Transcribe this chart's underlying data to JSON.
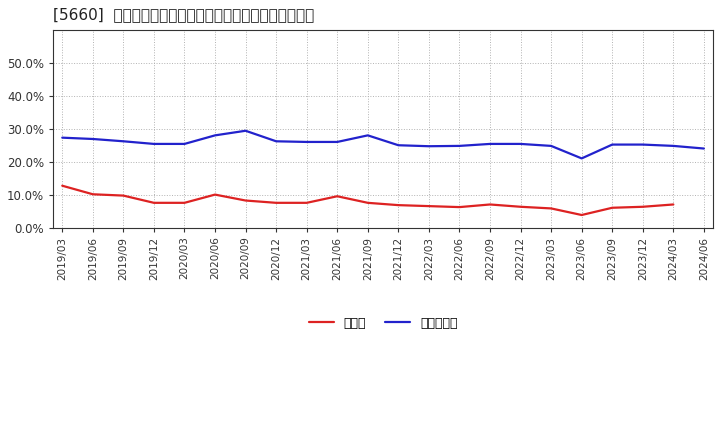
{
  "title": "[5660]  現領金、有利子負債の総資産に対する比率の推移",
  "x_labels": [
    "2019/03",
    "2019/06",
    "2019/09",
    "2019/12",
    "2020/03",
    "2020/06",
    "2020/09",
    "2020/12",
    "2021/03",
    "2021/06",
    "2021/09",
    "2021/12",
    "2022/03",
    "2022/06",
    "2022/09",
    "2022/12",
    "2023/03",
    "2023/06",
    "2023/09",
    "2023/12",
    "2024/03",
    "2024/06"
  ],
  "cash": [
    0.127,
    0.101,
    0.097,
    0.075,
    0.075,
    0.1,
    0.082,
    0.075,
    0.075,
    0.095,
    0.075,
    0.068,
    0.065,
    0.062,
    0.07,
    0.063,
    0.058,
    0.038,
    0.06,
    0.063,
    0.07,
    null
  ],
  "debt": [
    0.273,
    0.269,
    0.262,
    0.254,
    0.254,
    0.28,
    0.294,
    0.262,
    0.26,
    0.26,
    0.28,
    0.25,
    0.247,
    0.248,
    0.254,
    0.254,
    0.248,
    0.21,
    0.252,
    0.252,
    0.248,
    0.24
  ],
  "cash_color": "#dd2222",
  "debt_color": "#2222cc",
  "background_color": "#ffffff",
  "grid_color": "#aaaaaa",
  "legend_cash": "現領金",
  "legend_debt": "有利子負債",
  "ylim": [
    0.0,
    0.6
  ],
  "yticks": [
    0.0,
    0.1,
    0.2,
    0.3,
    0.4,
    0.5
  ],
  "line_width": 1.6
}
